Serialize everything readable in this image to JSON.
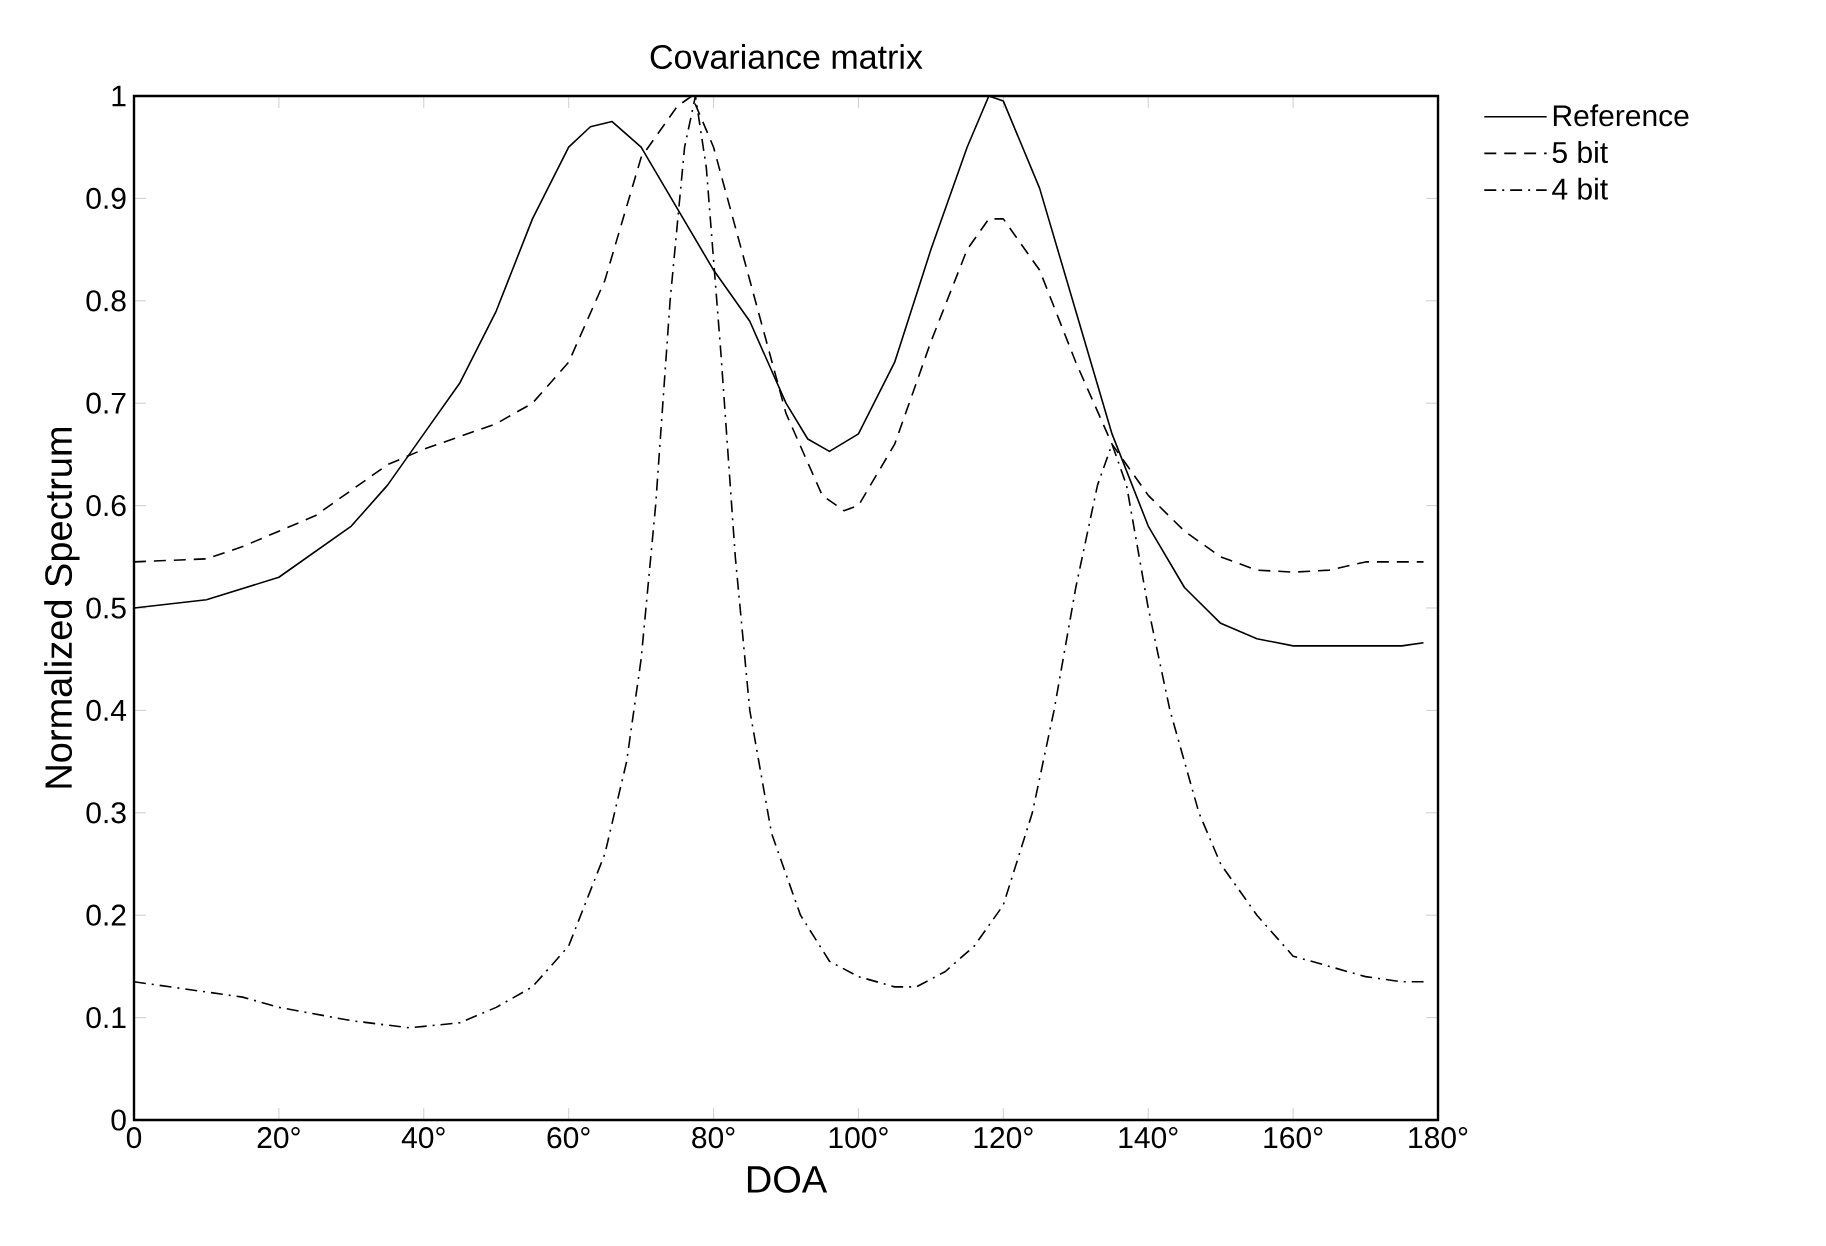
{
  "chart_data": {
    "type": "line",
    "title": "Covariance matrix",
    "xlabel": "DOA",
    "ylabel": "Normalized Spectrum",
    "xlim": [
      0,
      180
    ],
    "ylim": [
      0,
      1
    ],
    "xticks": [
      0,
      {
        "value": 20,
        "label": "20°"
      },
      {
        "value": 40,
        "label": "40°"
      },
      {
        "value": 60,
        "label": "60°"
      },
      {
        "value": 80,
        "label": "80°"
      },
      {
        "value": 100,
        "label": "100°"
      },
      {
        "value": 120,
        "label": "120°"
      },
      {
        "value": 140,
        "label": "140°"
      },
      {
        "value": 160,
        "label": "160°"
      },
      {
        "value": 180,
        "label": "180°"
      }
    ],
    "yticks": [
      0,
      0.1,
      0.2,
      0.3,
      0.4,
      0.5,
      0.6,
      0.7,
      0.8,
      0.9,
      1
    ],
    "legend": "top right",
    "series": [
      {
        "name": "Reference",
        "color": "#000000",
        "line_style": "solid",
        "x": [
          0,
          10,
          20,
          30,
          35,
          40,
          45,
          50,
          55,
          60,
          63,
          66,
          70,
          75,
          80,
          85,
          90,
          93,
          96,
          100,
          105,
          110,
          115,
          118,
          120,
          125,
          130,
          135,
          140,
          145,
          150,
          155,
          160,
          170,
          175,
          178
        ],
        "values": [
          0.5,
          0.508,
          0.53,
          0.58,
          0.62,
          0.67,
          0.72,
          0.79,
          0.88,
          0.95,
          0.97,
          0.975,
          0.95,
          0.89,
          0.83,
          0.78,
          0.7,
          0.665,
          0.653,
          0.67,
          0.74,
          0.85,
          0.95,
          1.0,
          0.995,
          0.91,
          0.79,
          0.67,
          0.58,
          0.52,
          0.485,
          0.47,
          0.463,
          0.463,
          0.463,
          0.466
        ]
      },
      {
        "name": "5 bit",
        "color": "#000000",
        "line_style": "dashed",
        "x": [
          0,
          10,
          15,
          20,
          25,
          30,
          35,
          40,
          50,
          55,
          60,
          65,
          70,
          75,
          77,
          80,
          85,
          90,
          95,
          98,
          100,
          105,
          110,
          115,
          118,
          120,
          125,
          130,
          135,
          140,
          145,
          150,
          155,
          160,
          165,
          170,
          178
        ],
        "values": [
          0.545,
          0.548,
          0.56,
          0.575,
          0.59,
          0.615,
          0.64,
          0.655,
          0.68,
          0.7,
          0.74,
          0.82,
          0.94,
          0.99,
          1.0,
          0.95,
          0.82,
          0.69,
          0.61,
          0.595,
          0.6,
          0.66,
          0.76,
          0.85,
          0.88,
          0.88,
          0.83,
          0.74,
          0.66,
          0.61,
          0.575,
          0.55,
          0.537,
          0.535,
          0.537,
          0.545,
          0.545
        ]
      },
      {
        "name": "4 bit",
        "color": "#000000",
        "line_style": "dashdot",
        "x": [
          0,
          10,
          15,
          20,
          30,
          38,
          45,
          50,
          55,
          60,
          65,
          68,
          70,
          72,
          74,
          76,
          77.5,
          79,
          81,
          83,
          85,
          88,
          92,
          96,
          100,
          105,
          108,
          112,
          116,
          120,
          124,
          127,
          130,
          133,
          135,
          137,
          140,
          143,
          147,
          150,
          155,
          160,
          165,
          170,
          175,
          178
        ],
        "values": [
          0.135,
          0.125,
          0.12,
          0.11,
          0.097,
          0.09,
          0.095,
          0.11,
          0.13,
          0.17,
          0.26,
          0.35,
          0.45,
          0.6,
          0.8,
          0.95,
          1.0,
          0.93,
          0.75,
          0.55,
          0.4,
          0.28,
          0.2,
          0.155,
          0.14,
          0.13,
          0.13,
          0.145,
          0.17,
          0.21,
          0.3,
          0.4,
          0.52,
          0.62,
          0.66,
          0.62,
          0.5,
          0.4,
          0.3,
          0.25,
          0.2,
          0.16,
          0.15,
          0.14,
          0.135,
          0.135
        ]
      }
    ]
  }
}
